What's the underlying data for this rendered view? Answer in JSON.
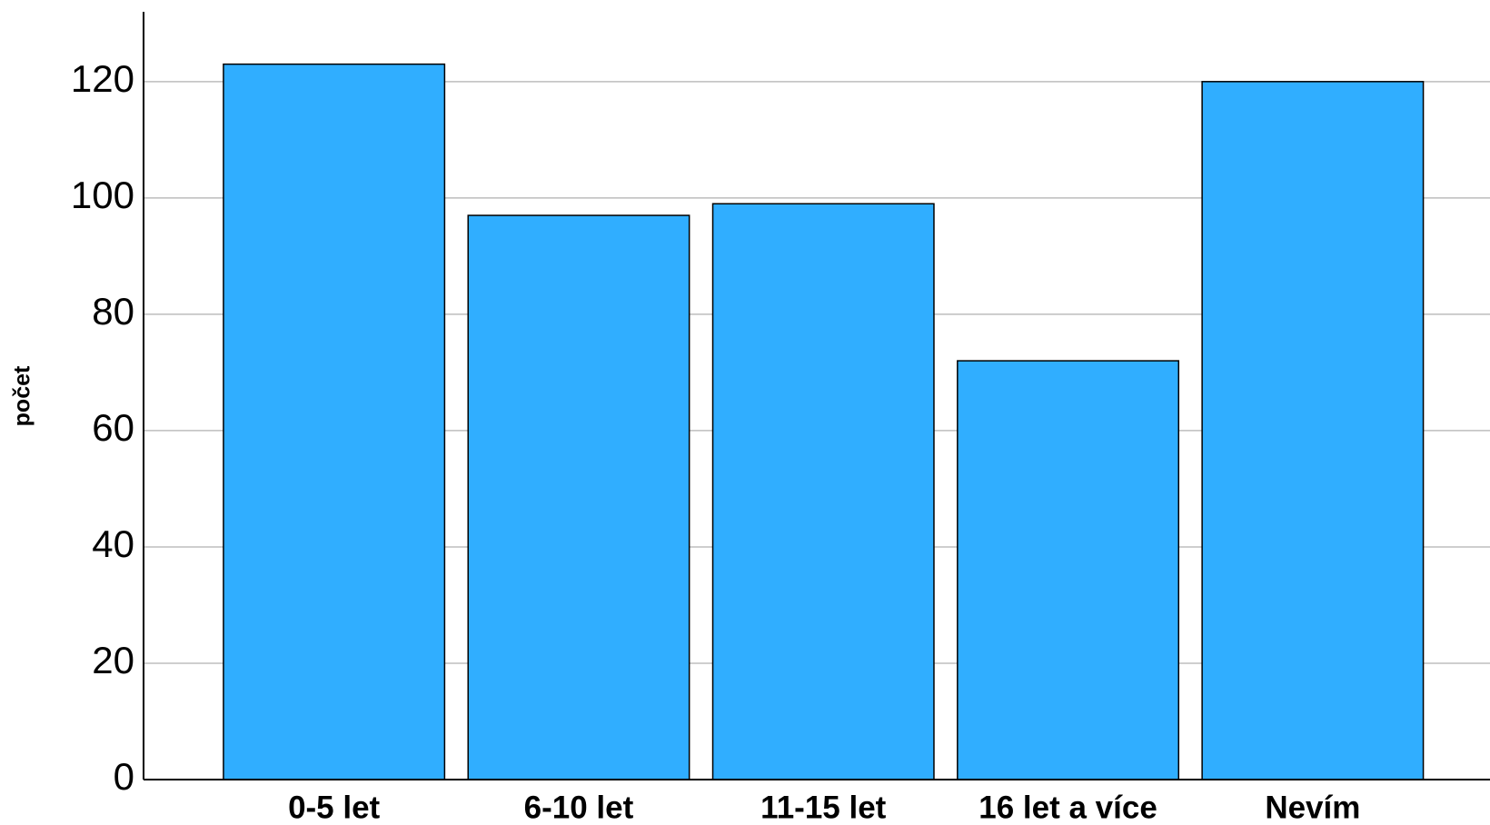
{
  "chart_data": {
    "type": "bar",
    "y_label": "počet",
    "categories": [
      "0-5 let",
      "6-10 let",
      "11-15 let",
      "16 let a více",
      "Nevím"
    ],
    "values": [
      123,
      97,
      99,
      72,
      120
    ],
    "color": "#30aeff",
    "ylim": [
      0,
      132
    ],
    "yticks": [
      0,
      20,
      40,
      60,
      80,
      100,
      120
    ],
    "grid": true
  }
}
